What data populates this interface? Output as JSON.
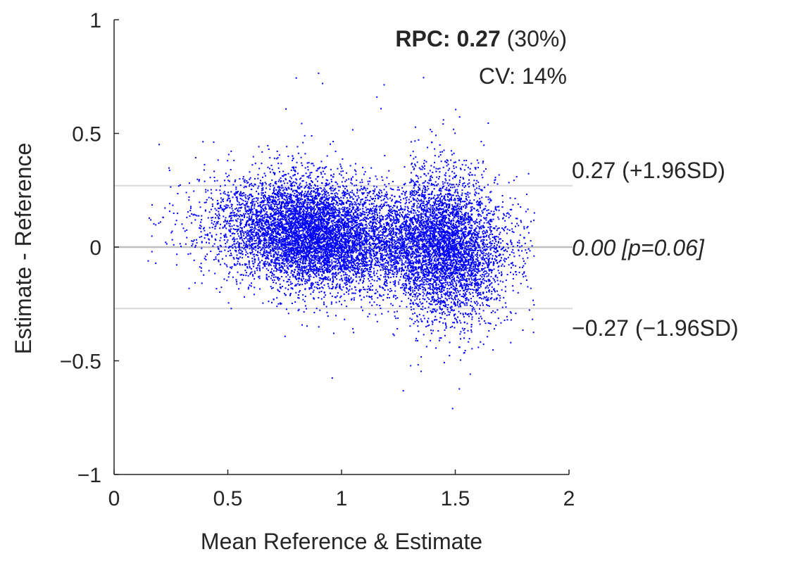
{
  "chart_data": {
    "type": "scatter",
    "title": "",
    "xlabel": "Mean Reference & Estimate",
    "ylabel": "Estimate - Reference",
    "xlim": [
      0,
      2
    ],
    "ylim": [
      -1,
      1
    ],
    "xticks": [
      0,
      0.5,
      1,
      1.5,
      2
    ],
    "xtick_labels": [
      "0",
      "0.5",
      "1",
      "1.5",
      "2"
    ],
    "yticks": [
      -1,
      -0.5,
      0,
      0.5,
      1
    ],
    "ytick_labels": [
      "−1",
      "−0.5",
      "0",
      "0.5",
      "1"
    ],
    "grid": false,
    "point_color": "#0000ff",
    "series": [
      {
        "name": "Estimate - Reference",
        "approx_point_count": 12000,
        "x_range": [
          0.13,
          1.85
        ],
        "y_range": [
          -0.72,
          0.84
        ],
        "dense_clusters": [
          {
            "x_center": 0.88,
            "y_center": 0.05
          },
          {
            "x_center": 1.45,
            "y_center": -0.05
          }
        ]
      }
    ],
    "reference_lines": [
      {
        "name": "upper-limit",
        "y": 0.27,
        "label": "0.27 (+1.96SD)",
        "color": "#d9d9d9"
      },
      {
        "name": "mean-bias",
        "y": 0.0,
        "label": "0.00 [p=0.06]",
        "color": "#bfbfbf"
      },
      {
        "name": "lower-limit",
        "y": -0.27,
        "label": "−0.27 (−1.96SD)",
        "color": "#d9d9d9"
      }
    ],
    "annotations": {
      "rpc_label": "RPC:",
      "rpc_value": "0.27",
      "rpc_percent": "(30%)",
      "cv": "CV: 14%"
    }
  }
}
